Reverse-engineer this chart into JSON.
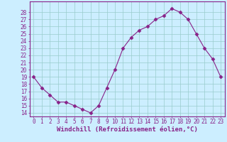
{
  "x": [
    0,
    1,
    2,
    3,
    4,
    5,
    6,
    7,
    8,
    9,
    10,
    11,
    12,
    13,
    14,
    15,
    16,
    17,
    18,
    19,
    20,
    21,
    22,
    23
  ],
  "y": [
    19,
    17.5,
    16.5,
    15.5,
    15.5,
    15,
    14.5,
    14,
    15,
    17.5,
    20,
    23,
    24.5,
    25.5,
    26,
    27,
    27.5,
    28.5,
    28,
    27,
    25,
    23,
    21.5,
    19
  ],
  "line_color": "#882288",
  "marker": "D",
  "marker_size": 2.5,
  "bg_color": "#cceeff",
  "grid_color": "#99cccc",
  "xlabel": "Windchill (Refroidissement éolien,°C)",
  "xlabel_color": "#882288",
  "ylim": [
    13.5,
    29.5
  ],
  "xlim": [
    -0.5,
    23.5
  ],
  "yticks": [
    14,
    15,
    16,
    17,
    18,
    19,
    20,
    21,
    22,
    23,
    24,
    25,
    26,
    27,
    28
  ],
  "xticks": [
    0,
    1,
    2,
    3,
    4,
    5,
    6,
    7,
    8,
    9,
    10,
    11,
    12,
    13,
    14,
    15,
    16,
    17,
    18,
    19,
    20,
    21,
    22,
    23
  ],
  "tick_color": "#882288",
  "tick_fontsize": 5.5,
  "xlabel_fontsize": 6.5,
  "spine_color": "#882288",
  "linewidth": 0.8
}
